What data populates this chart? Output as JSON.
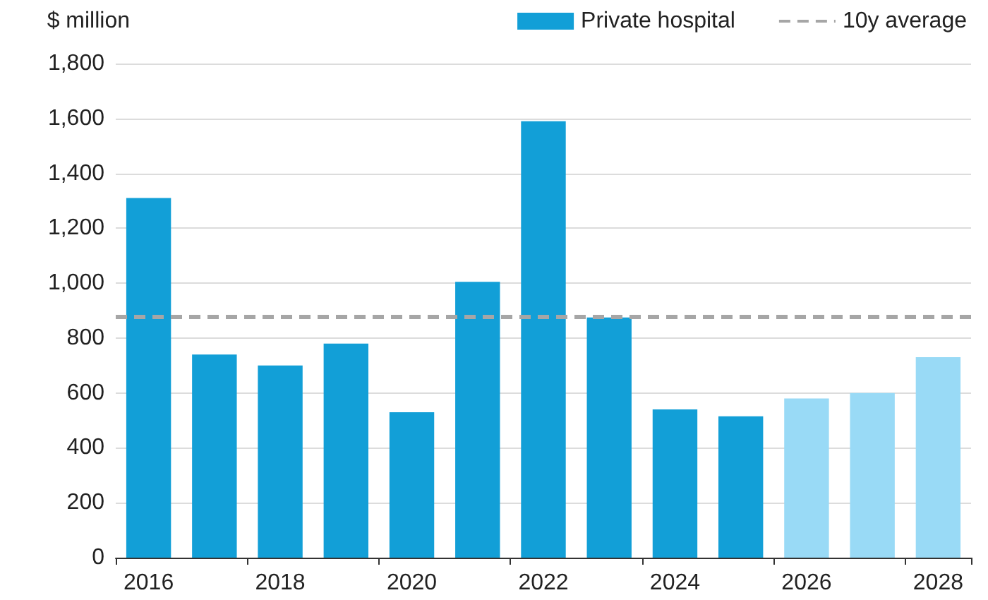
{
  "chart_data": {
    "type": "bar",
    "ylabel": "$ million",
    "categories": [
      "2016",
      null,
      "2018",
      null,
      "2020",
      null,
      "2022",
      null,
      "2024",
      null,
      "2026",
      null,
      "2028"
    ],
    "series": [
      {
        "name": "Private hospital",
        "color": "#129fd7",
        "values": [
          1310,
          740,
          700,
          780,
          530,
          1005,
          1590,
          875,
          540,
          515,
          580,
          600,
          730
        ],
        "colors": [
          "#129fd7",
          "#129fd7",
          "#129fd7",
          "#129fd7",
          "#129fd7",
          "#129fd7",
          "#129fd7",
          "#129fd7",
          "#129fd7",
          "#129fd7",
          "#99daf6",
          "#99daf6",
          "#99daf6"
        ]
      }
    ],
    "ylim": [
      0,
      1800
    ],
    "yticks": [
      0,
      200,
      400,
      600,
      800,
      {
        "value": 1000,
        "label": "1,000"
      },
      {
        "value": 1200,
        "label": "1,200"
      },
      {
        "value": 1400,
        "label": "1,400"
      },
      {
        "value": 1600,
        "label": "1,600"
      },
      {
        "value": 1800,
        "label": "1,800"
      }
    ],
    "ref_lines": [
      {
        "axis": "y",
        "value": 880,
        "label": "10y average",
        "color": "#a6a6a6",
        "line_style": "dashed"
      }
    ],
    "grid": "y",
    "legend": "top right"
  }
}
